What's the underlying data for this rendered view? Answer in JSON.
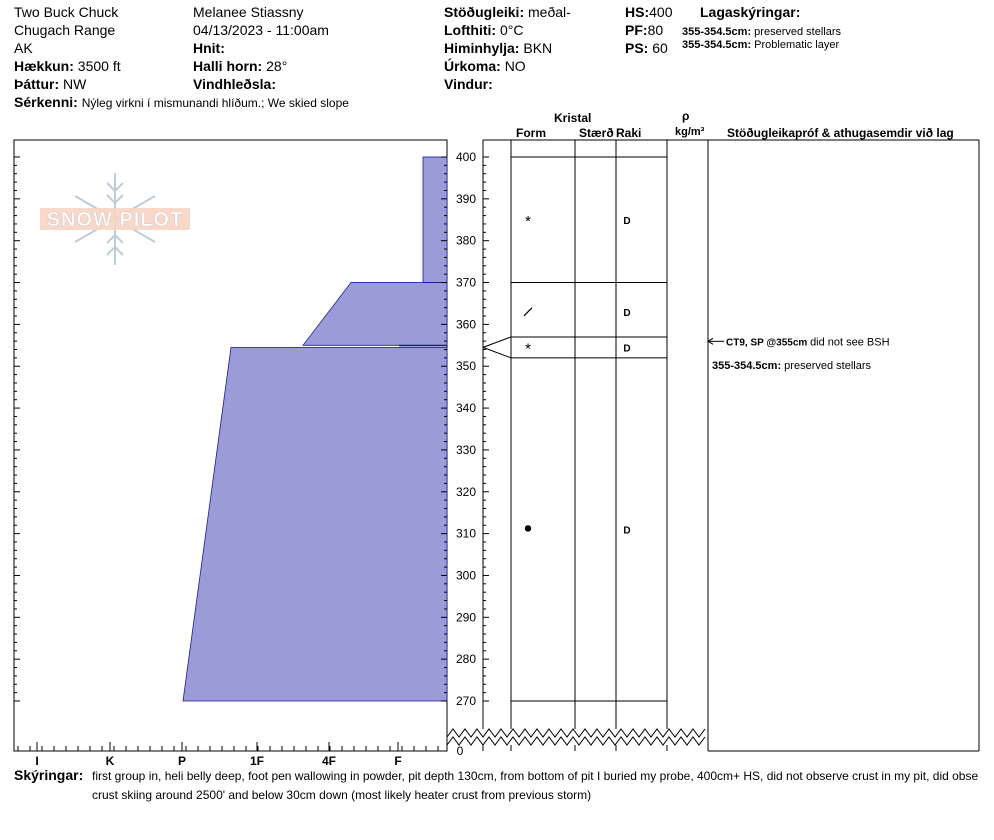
{
  "header": {
    "location_name": "Two Buck Chuck",
    "range": "Chugach Range",
    "state": "AK",
    "elevation_label": "Hækkun:",
    "elevation": "3500 ft",
    "aspect_label": "Þáttur:",
    "aspect": "NW",
    "features_label": "Sérkenni:",
    "features": "Nýleg virkni í mismunandi hlíðum.; We skied slope",
    "observer": "Melanee Stiassny",
    "datetime": "04/13/2023 - 11:00am",
    "coords_label": "Hnit:",
    "slope_label": "Halli horn:",
    "slope": "28°",
    "wind_loading_label": "Vindhleðsla:",
    "stability_label": "Stöðugleiki:",
    "stability": "meðal-",
    "air_temp_label": "Lofthiti:",
    "air_temp": "0°C",
    "sky_label": "Himinhylja:",
    "sky": "BKN",
    "precip_label": "Úrkoma:",
    "precip": "NO",
    "wind_label": "Vindur:",
    "hs_label": "HS:",
    "hs": "400",
    "pf_label": "PF:",
    "pf": "80",
    "ps_label": "PS:",
    "ps": "60",
    "layers_title": "Lagaskýringar:",
    "layer_notes": [
      {
        "range": "355-354.5cm:",
        "text": "preserved stellars"
      },
      {
        "range": "355-354.5cm:",
        "text": "Problematic layer"
      }
    ]
  },
  "columns": {
    "crystal": "Kristal",
    "form": "Form",
    "size": "Stærð",
    "moisture": "Raki",
    "rho": "ρ",
    "density_unit": "kg/m³",
    "tests_comments": "Stöðugleikapróf & athugasemdir við lag"
  },
  "logo_text": "SNOW PILOT",
  "comments": {
    "label": "Skýringar:",
    "line1": "first group in, heli belly deep, foot pen wallowing in powder, pit depth 130cm, from bottom of pit I buried my probe, 400cm+ HS, did not observe crust in my pit, did obse",
    "line2": "crust skiing around 2500' and below 30cm down (most likely heater crust from previous storm)"
  },
  "colors": {
    "hardness_fill": "#9b9bd8",
    "hardness_stroke": "#1a1aa0",
    "grid": "#000000"
  },
  "chart_data": {
    "type": "snow-profile",
    "y_unit": "cm",
    "y_ticks": [
      400,
      390,
      380,
      370,
      360,
      350,
      340,
      330,
      320,
      310,
      300,
      290,
      280,
      270
    ],
    "y_zero_label": "0",
    "ylim": [
      270,
      400
    ],
    "hardness_scale": [
      "I",
      "K",
      "P",
      "1F",
      "4F",
      "F"
    ],
    "hardness_profile": [
      {
        "top": 400,
        "bottom": 370,
        "hardness": "F+ (0.35)"
      },
      {
        "top": 370,
        "bottom": 355,
        "hardness": "1F to 4F+ (graded)"
      },
      {
        "top": 355,
        "bottom": 354.5,
        "hardness": "F+"
      },
      {
        "top": 354.5,
        "bottom": 270,
        "hardness": "P- to 1F (graded)"
      }
    ],
    "layer_boundaries": [
      400,
      370,
      357,
      352,
      270
    ],
    "layers": [
      {
        "grain_symbol": "*",
        "grain_label": "precipitation particles",
        "at": 385,
        "moisture": "D"
      },
      {
        "grain_symbol": "/",
        "grain_label": "decomposing fragments",
        "at": 363,
        "moisture": "D"
      },
      {
        "grain_symbol": "*",
        "grain_label": "precipitation particles",
        "at": 354.5,
        "moisture": "D"
      },
      {
        "grain_symbol": "•",
        "grain_label": "rounded grains",
        "at": 311,
        "moisture": "D"
      }
    ],
    "stability_tests": [
      {
        "at": 355,
        "test": "CT9, SP @355cm",
        "comment": "did not see BSH"
      }
    ],
    "layer_comments": [
      {
        "range": "355-354.5cm:",
        "text": "preserved stellars"
      }
    ]
  }
}
